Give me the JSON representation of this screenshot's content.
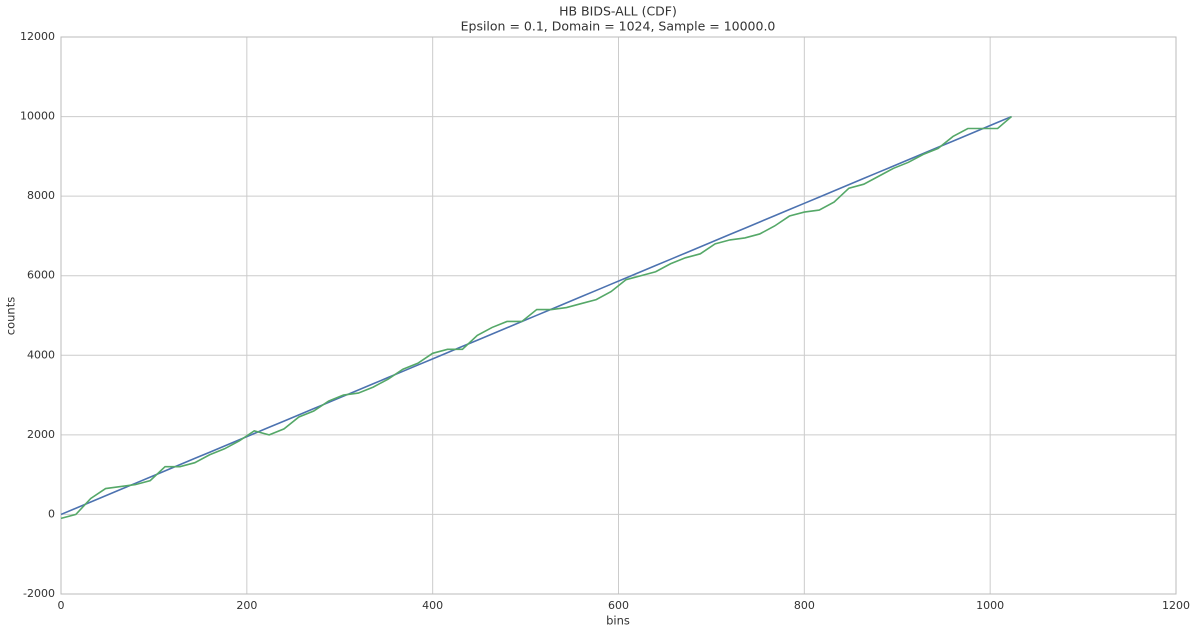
{
  "chart_data": {
    "type": "line",
    "title": "HB BIDS-ALL (CDF)",
    "subtitle": "Epsilon = 0.1, Domain = 1024, Sample = 10000.0",
    "x_label": "bins",
    "y_label": "counts",
    "x": [
      0,
      16,
      32,
      48,
      64,
      80,
      96,
      112,
      128,
      144,
      160,
      176,
      192,
      208,
      224,
      240,
      256,
      272,
      288,
      304,
      320,
      336,
      352,
      368,
      384,
      400,
      416,
      432,
      448,
      464,
      480,
      496,
      512,
      528,
      544,
      560,
      576,
      592,
      608,
      624,
      640,
      656,
      672,
      688,
      704,
      720,
      736,
      752,
      768,
      784,
      800,
      816,
      832,
      848,
      864,
      880,
      896,
      912,
      928,
      944,
      960,
      976,
      992,
      1008,
      1023
    ],
    "series": [
      {
        "color": "#4c72b0",
        "values": [
          0,
          156,
          313,
          469,
          626,
          782,
          938,
          1095,
          1251,
          1408,
          1564,
          1720,
          1877,
          2033,
          2190,
          2346,
          2502,
          2659,
          2815,
          2972,
          3128,
          3284,
          3441,
          3597,
          3754,
          3910,
          4066,
          4223,
          4379,
          4536,
          4692,
          4848,
          5005,
          5161,
          5318,
          5474,
          5630,
          5787,
          5943,
          6100,
          6256,
          6412,
          6569,
          6725,
          6882,
          7038,
          7194,
          7351,
          7507,
          7664,
          7820,
          7976,
          8133,
          8289,
          8446,
          8602,
          8758,
          8915,
          9071,
          9228,
          9384,
          9540,
          9697,
          9853,
          10000
        ]
      },
      {
        "color": "#55a868",
        "values": [
          -100,
          0,
          400,
          650,
          700,
          750,
          850,
          1200,
          1200,
          1300,
          1500,
          1650,
          1850,
          2100,
          2000,
          2150,
          2450,
          2600,
          2850,
          3000,
          3050,
          3200,
          3400,
          3650,
          3800,
          4050,
          4150,
          4150,
          4500,
          4700,
          4850,
          4850,
          5150,
          5150,
          5200,
          5300,
          5400,
          5600,
          5900,
          6000,
          6100,
          6300,
          6450,
          6550,
          6800,
          6900,
          6950,
          7050,
          7250,
          7500,
          7600,
          7650,
          7850,
          8200,
          8300,
          8500,
          8700,
          8850,
          9050,
          9200,
          9500,
          9700,
          9700,
          9700,
          10000
        ]
      }
    ],
    "xlim": [
      0,
      1200
    ],
    "xticks": [
      0,
      200,
      400,
      600,
      800,
      1000,
      1200
    ],
    "ylim": [
      -2000,
      12000
    ],
    "yticks": [
      -2000,
      0,
      2000,
      4000,
      6000,
      8000,
      10000,
      12000
    ],
    "grid": true
  }
}
